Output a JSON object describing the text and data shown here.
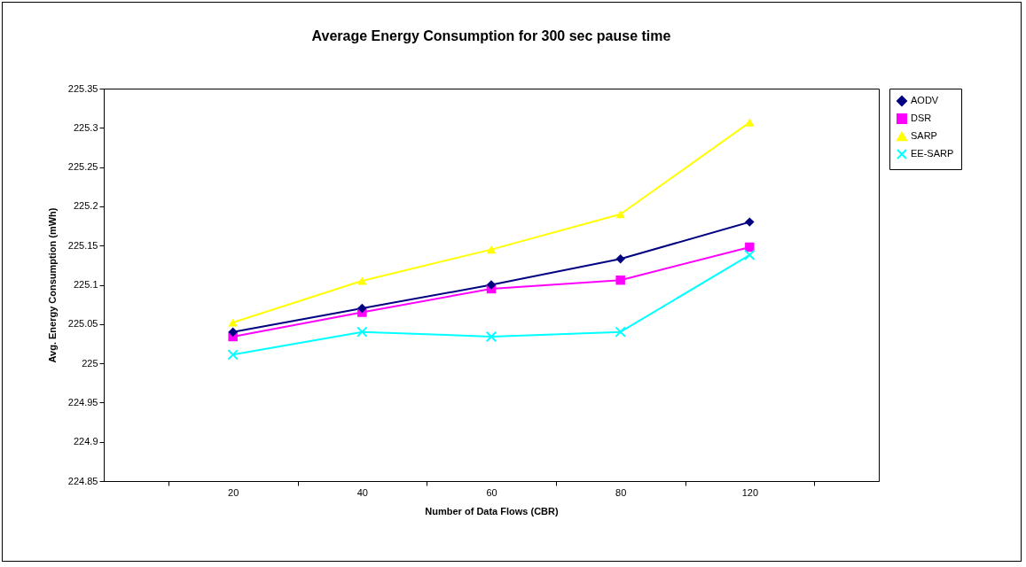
{
  "chart_data": {
    "type": "line",
    "title": "Average Energy Consumption for 300 sec pause time",
    "xlabel": "Number of Data Flows (CBR)",
    "ylabel": "Avg. Energy Consumption (mWh)",
    "categories": [
      "20",
      "40",
      "60",
      "80",
      "120"
    ],
    "series": [
      {
        "name": "AODV",
        "color": "#000080",
        "marker": "diamond",
        "values": [
          225.04,
          225.07,
          225.1,
          225.133,
          225.18
        ]
      },
      {
        "name": "DSR",
        "color": "#ff00ff",
        "marker": "square",
        "values": [
          225.034,
          225.065,
          225.095,
          225.106,
          225.148
        ]
      },
      {
        "name": "SARP",
        "color": "#ffff00",
        "marker": "triangle",
        "values": [
          225.052,
          225.105,
          225.145,
          225.19,
          225.307
        ]
      },
      {
        "name": "EE-SARP",
        "color": "#00ffff",
        "marker": "cross",
        "values": [
          225.011,
          225.04,
          225.034,
          225.04,
          225.138
        ]
      }
    ],
    "ylim": [
      224.85,
      225.35
    ],
    "yticks": [
      224.85,
      224.9,
      224.95,
      225,
      225.05,
      225.1,
      225.15,
      225.2,
      225.25,
      225.3,
      225.35
    ],
    "grid": false,
    "legend": "right",
    "line_style": "solid"
  }
}
